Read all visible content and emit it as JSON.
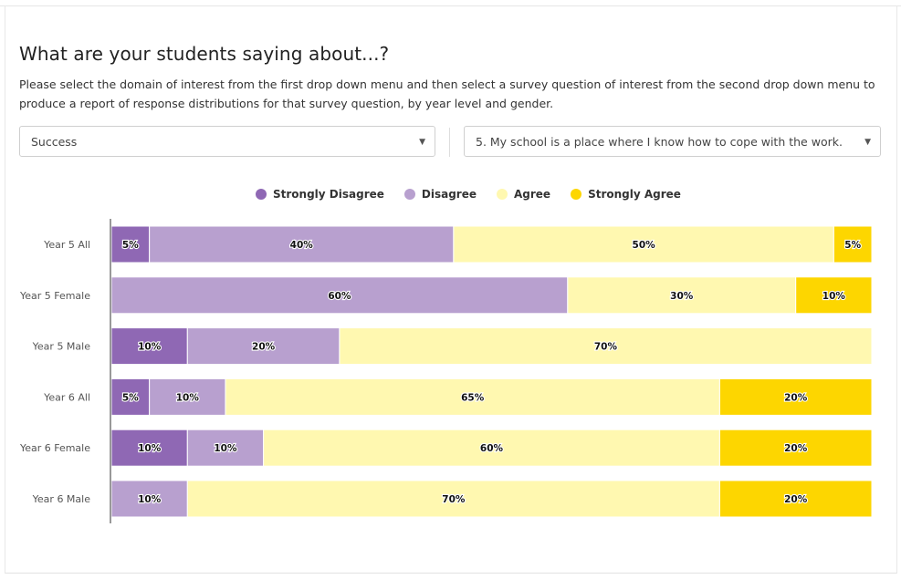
{
  "page": {
    "title": "What are your students saying about...?",
    "description": "Please select the domain of interest from the first drop down menu and then select a survey question of interest from the second drop down menu to produce a report of response distributions for that survey question, by year level and gender."
  },
  "filters": {
    "domain": {
      "selected": "Success"
    },
    "question": {
      "selected": "5. My school is a place where I know how to cope with the work."
    }
  },
  "chart_data": {
    "type": "bar",
    "orientation": "horizontal",
    "stacked": true,
    "percent": true,
    "categories": [
      "Year 5 All",
      "Year 5 Female",
      "Year 5 Male",
      "Year 6 All",
      "Year 6 Female",
      "Year 6 Male"
    ],
    "series": [
      {
        "name": "Strongly Disagree",
        "color": "#8f68b4",
        "values": [
          5,
          0,
          10,
          5,
          10,
          0
        ]
      },
      {
        "name": "Disagree",
        "color": "#b8a0cf",
        "values": [
          40,
          60,
          20,
          10,
          10,
          10
        ]
      },
      {
        "name": "Agree",
        "color": "#fff8b0",
        "values": [
          50,
          30,
          70,
          65,
          60,
          70
        ]
      },
      {
        "name": "Strongly Agree",
        "color": "#fdd600",
        "values": [
          5,
          10,
          0,
          20,
          20,
          20
        ]
      }
    ],
    "xlim": [
      0,
      100
    ],
    "legend": "top-center",
    "grid": false
  }
}
